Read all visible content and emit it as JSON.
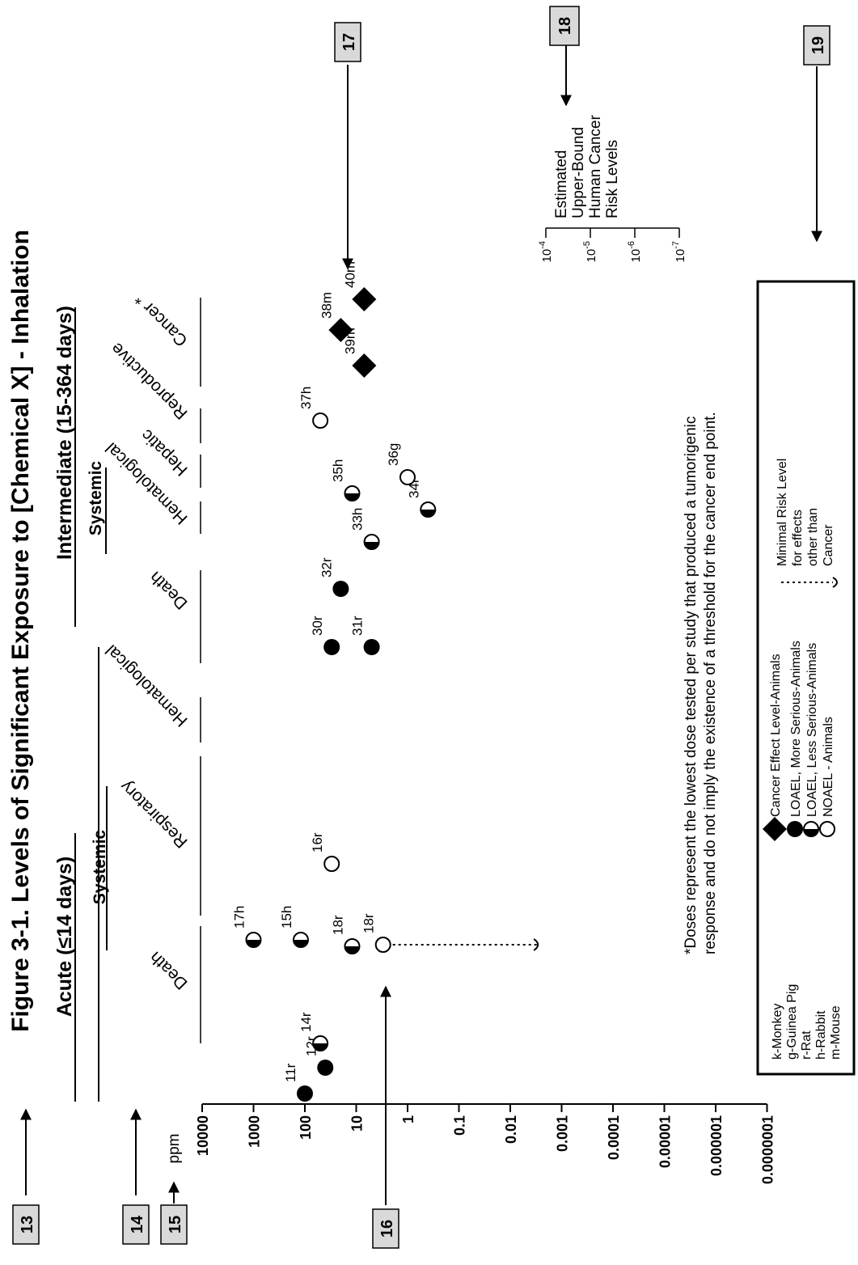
{
  "title": "Figure 3-1.  Levels of Significant Exposure to [Chemical X] - Inhalation",
  "unit": "ppm",
  "callouts": [
    "13",
    "14",
    "15",
    "16",
    "17",
    "18",
    "19"
  ],
  "sections": [
    {
      "label": "Acute (≤14 days)",
      "systemic": "Systemic"
    },
    {
      "label": "Intermediate (15-364 days)",
      "systemic": "Systemic"
    }
  ],
  "endpoints": [
    "Death",
    "Respiratory",
    "Hematological",
    "Death",
    "Hematological",
    "Hepatic",
    "Reproductive",
    "Cancer *"
  ],
  "axis_ticks": [
    "10000",
    "1000",
    "100",
    "10",
    "1",
    "0.1",
    "0.01",
    "0.001",
    "0.0001",
    "0.00001",
    "0.000001",
    "0.0000001"
  ],
  "cancer_risk": {
    "label_lines": [
      "Estimated",
      "Upper-Bound",
      "Human Cancer",
      "Risk Levels"
    ],
    "ticks": [
      {
        "base": "10",
        "exp": "-4"
      },
      {
        "base": "10",
        "exp": "-5"
      },
      {
        "base": "10",
        "exp": "-6"
      },
      {
        "base": "10",
        "exp": "-7"
      }
    ]
  },
  "footnote_lines": [
    "*Doses represent the lowest dose tested per study that produced a tumorigenic",
    "response and do not imply the existence of a threshold for the cancer end point."
  ],
  "legend": {
    "species": [
      "k-Monkey",
      "g-Guinea Pig",
      "r-Rat",
      "h-Rabbit",
      "m-Mouse"
    ],
    "markers": [
      {
        "shape": "diamond",
        "label": "Cancer Effect Level-Animals"
      },
      {
        "shape": "filled",
        "label": "LOAEL, More Serious-Animals"
      },
      {
        "shape": "half",
        "label": "LOAEL, Less Serious-Animals"
      },
      {
        "shape": "open",
        "label": "NOAEL - Animals"
      }
    ],
    "mrl_lines": [
      "Minimal Risk Level",
      "for effects",
      "other than",
      "Cancer"
    ]
  },
  "chart_data": {
    "type": "scatter",
    "title": "Figure 3-1.  Levels of Significant Exposure to [Chemical X] - Inhalation",
    "ylabel": "ppm",
    "yscale": "log",
    "ylim": [
      1e-07,
      10000
    ],
    "categories": [
      "Death",
      "Respiratory",
      "Hematological",
      "Death",
      "Hematological",
      "Hepatic",
      "Reproductive",
      "Cancer *"
    ],
    "points": [
      {
        "label": "11r",
        "category": "Death",
        "value": 100,
        "marker": "filled"
      },
      {
        "label": "12r",
        "category": "Death",
        "value": 40,
        "marker": "filled"
      },
      {
        "label": "14r",
        "category": "Death",
        "value": 50,
        "marker": "half"
      },
      {
        "label": "17h",
        "category": "Respiratory",
        "value": 1000,
        "marker": "half"
      },
      {
        "label": "15h",
        "category": "Respiratory",
        "value": 120,
        "marker": "half"
      },
      {
        "label": "18r",
        "category": "Respiratory",
        "value": 12,
        "marker": "half"
      },
      {
        "label": "18r",
        "category": "Respiratory",
        "value": 3,
        "marker": "open"
      },
      {
        "label": "16r",
        "category": "Hematological",
        "value": 30,
        "marker": "open"
      },
      {
        "label": "30r",
        "category": "Death",
        "value": 30,
        "marker": "filled"
      },
      {
        "label": "31r",
        "category": "Death",
        "value": 5,
        "marker": "filled"
      },
      {
        "label": "32r",
        "category": "Death",
        "value": 20,
        "marker": "filled"
      },
      {
        "label": "33h",
        "category": "Hematological",
        "value": 5,
        "marker": "half"
      },
      {
        "label": "34r",
        "category": "Hematological",
        "value": 0.4,
        "marker": "half"
      },
      {
        "label": "35h",
        "category": "Hepatic",
        "value": 12,
        "marker": "half"
      },
      {
        "label": "36g",
        "category": "Hepatic",
        "value": 1,
        "marker": "open"
      },
      {
        "label": "37h",
        "category": "Reproductive",
        "value": 50,
        "marker": "open"
      },
      {
        "label": "38m",
        "category": "Cancer *",
        "value": 20,
        "marker": "diamond"
      },
      {
        "label": "39m",
        "category": "Cancer *",
        "value": 7,
        "marker": "diamond"
      },
      {
        "label": "40m",
        "category": "Cancer *",
        "value": 7,
        "marker": "diamond"
      }
    ],
    "mrl": {
      "value": 0.003,
      "category": "Respiratory"
    }
  }
}
